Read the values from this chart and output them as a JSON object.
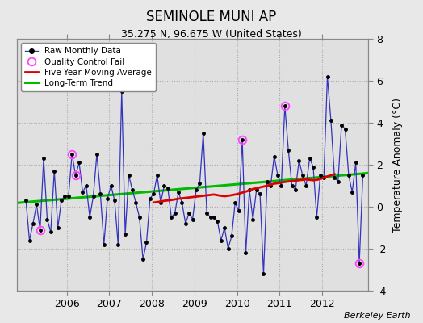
{
  "title": "SEMINOLE MUNI AP",
  "subtitle": "35.275 N, 96.675 W (United States)",
  "ylabel": "Temperature Anomaly (°C)",
  "credit": "Berkeley Earth",
  "ylim": [
    -4,
    8
  ],
  "yticks": [
    -4,
    -2,
    0,
    2,
    4,
    6,
    8
  ],
  "xlim": [
    2004.83,
    2013.08
  ],
  "xticks": [
    2006,
    2007,
    2008,
    2009,
    2010,
    2011,
    2012
  ],
  "bg_color": "#e8e8e8",
  "plot_bg_color": "#e0e0e0",
  "raw_color": "#3333bb",
  "raw_marker_color": "#000000",
  "qc_fail_color": "#ff44ff",
  "moving_avg_color": "#dd0000",
  "trend_color": "#00bb00",
  "months": [
    2005.042,
    2005.125,
    2005.208,
    2005.292,
    2005.375,
    2005.458,
    2005.542,
    2005.625,
    2005.708,
    2005.792,
    2005.875,
    2005.958,
    2006.042,
    2006.125,
    2006.208,
    2006.292,
    2006.375,
    2006.458,
    2006.542,
    2006.625,
    2006.708,
    2006.792,
    2006.875,
    2006.958,
    2007.042,
    2007.125,
    2007.208,
    2007.292,
    2007.375,
    2007.458,
    2007.542,
    2007.625,
    2007.708,
    2007.792,
    2007.875,
    2007.958,
    2008.042,
    2008.125,
    2008.208,
    2008.292,
    2008.375,
    2008.458,
    2008.542,
    2008.625,
    2008.708,
    2008.792,
    2008.875,
    2008.958,
    2009.042,
    2009.125,
    2009.208,
    2009.292,
    2009.375,
    2009.458,
    2009.542,
    2009.625,
    2009.708,
    2009.792,
    2009.875,
    2009.958,
    2010.042,
    2010.125,
    2010.208,
    2010.292,
    2010.375,
    2010.458,
    2010.542,
    2010.625,
    2010.708,
    2010.792,
    2010.875,
    2010.958,
    2011.042,
    2011.125,
    2011.208,
    2011.292,
    2011.375,
    2011.458,
    2011.542,
    2011.625,
    2011.708,
    2011.792,
    2011.875,
    2011.958,
    2012.042,
    2012.125,
    2012.208,
    2012.292,
    2012.375,
    2012.458,
    2012.542,
    2012.625,
    2012.708,
    2012.792,
    2012.875,
    2012.958
  ],
  "raw_values": [
    0.3,
    -1.6,
    -0.8,
    0.1,
    -1.1,
    2.3,
    -0.6,
    -1.2,
    1.7,
    -1.0,
    0.3,
    0.5,
    0.5,
    2.5,
    1.5,
    2.1,
    0.7,
    1.0,
    -0.5,
    0.5,
    2.5,
    0.6,
    -1.8,
    0.4,
    1.0,
    0.3,
    -1.8,
    5.5,
    -1.3,
    1.5,
    0.8,
    0.2,
    -0.5,
    -2.5,
    -1.7,
    0.4,
    0.6,
    1.5,
    0.2,
    1.0,
    0.9,
    -0.5,
    -0.3,
    0.7,
    0.2,
    -0.8,
    -0.3,
    -0.6,
    0.8,
    1.1,
    3.5,
    -0.3,
    -0.5,
    -0.5,
    -0.7,
    -1.6,
    -1.0,
    -2.0,
    -1.4,
    0.2,
    -0.2,
    3.2,
    -2.2,
    0.8,
    -0.6,
    0.8,
    0.6,
    -3.2,
    1.2,
    1.0,
    2.4,
    1.5,
    1.0,
    4.8,
    2.7,
    1.0,
    0.8,
    2.2,
    1.5,
    1.0,
    2.3,
    1.9,
    -0.5,
    1.5,
    1.4,
    6.2,
    4.1,
    1.4,
    1.2,
    3.9,
    3.7,
    1.5,
    0.7,
    2.1,
    -2.7,
    1.5
  ],
  "qc_fail_points": [
    [
      2005.375,
      -1.1
    ],
    [
      2006.125,
      2.5
    ],
    [
      2006.208,
      1.5
    ],
    [
      2010.125,
      3.2
    ],
    [
      2011.125,
      4.8
    ],
    [
      2012.875,
      -2.7
    ]
  ],
  "moving_avg_x": [
    2008.042,
    2008.125,
    2008.208,
    2008.292,
    2008.375,
    2008.458,
    2008.542,
    2008.625,
    2008.708,
    2008.792,
    2008.875,
    2008.958,
    2009.042,
    2009.125,
    2009.208,
    2009.292,
    2009.375,
    2009.458,
    2009.542,
    2009.625,
    2009.708,
    2009.792,
    2009.875,
    2009.958,
    2010.042,
    2010.125,
    2010.208,
    2010.292,
    2010.375,
    2010.458,
    2010.542,
    2010.625,
    2010.708,
    2010.792,
    2010.875,
    2010.958,
    2011.042,
    2011.125,
    2011.208,
    2011.292,
    2011.375,
    2011.458,
    2011.542,
    2011.625,
    2011.708,
    2011.792,
    2011.875,
    2011.958,
    2012.042,
    2012.125,
    2012.208,
    2012.292
  ],
  "moving_avg_y": [
    0.2,
    0.22,
    0.25,
    0.28,
    0.3,
    0.32,
    0.35,
    0.38,
    0.4,
    0.42,
    0.44,
    0.46,
    0.48,
    0.5,
    0.52,
    0.54,
    0.56,
    0.58,
    0.55,
    0.52,
    0.5,
    0.52,
    0.55,
    0.58,
    0.62,
    0.67,
    0.72,
    0.78,
    0.84,
    0.88,
    0.92,
    0.96,
    1.0,
    1.05,
    1.1,
    1.12,
    1.15,
    1.18,
    1.2,
    1.22,
    1.24,
    1.26,
    1.28,
    1.3,
    1.28,
    1.26,
    1.28,
    1.32,
    1.38,
    1.44,
    1.5,
    1.55
  ],
  "trend_x": [
    2004.83,
    2013.08
  ],
  "trend_y": [
    0.18,
    1.6
  ]
}
